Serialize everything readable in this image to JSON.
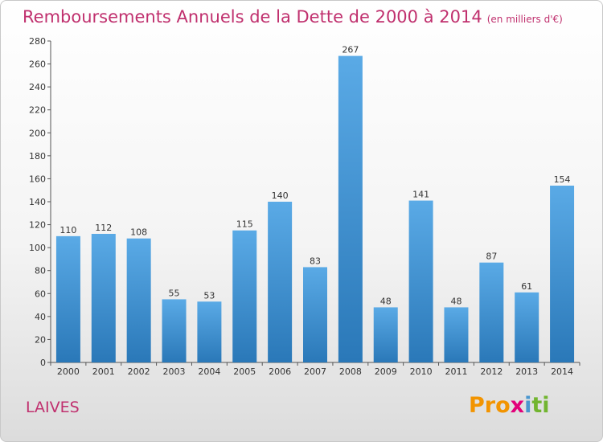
{
  "header": {
    "title": "Remboursements Annuels de la Dette de 2000 à 2014",
    "subtitle": "(en milliers d'€)"
  },
  "footer": {
    "commune": "LAIVES",
    "logo": {
      "part1": "Pro",
      "part2": "x",
      "part3": "i",
      "part4": "ti"
    }
  },
  "colors": {
    "bar_top": "#5aaae6",
    "bar_bottom": "#2a78b8",
    "title": "#c0306e"
  },
  "chart_data": {
    "type": "bar",
    "title": "Remboursements Annuels de la Dette de 2000 à 2014",
    "subtitle": "(en milliers d'€)",
    "xlabel": "",
    "ylabel": "",
    "categories": [
      "2000",
      "2001",
      "2002",
      "2003",
      "2004",
      "2005",
      "2006",
      "2007",
      "2008",
      "2009",
      "2010",
      "2011",
      "2012",
      "2013",
      "2014"
    ],
    "values": [
      110,
      112,
      108,
      55,
      53,
      115,
      140,
      83,
      267,
      48,
      141,
      48,
      87,
      61,
      154
    ],
    "ylim": [
      0,
      280
    ],
    "yticks": [
      0,
      20,
      40,
      60,
      80,
      100,
      120,
      140,
      160,
      180,
      200,
      220,
      240,
      260,
      280
    ],
    "grid": false,
    "data_labels": true
  }
}
